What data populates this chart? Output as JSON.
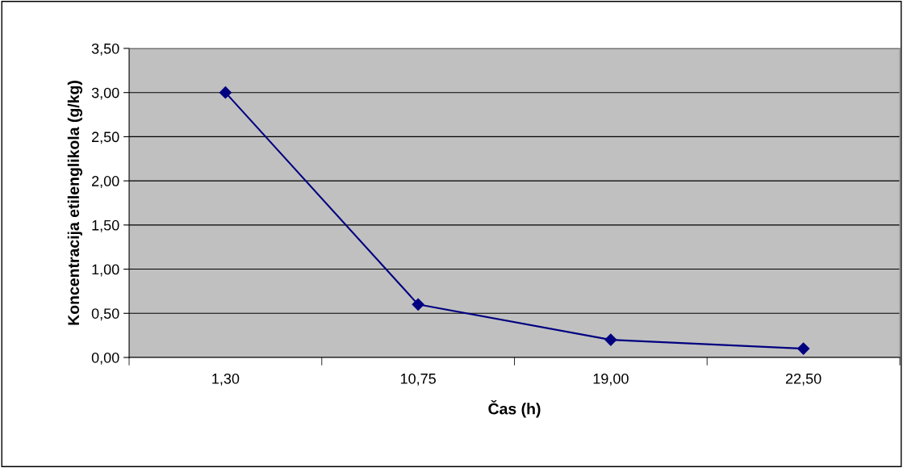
{
  "chart_data": {
    "type": "line",
    "xlabel": "Čas (h)",
    "ylabel": "Koncentracija etilenglikola (g/kg)",
    "categories": [
      "1,30",
      "10,75",
      "19,00",
      "22,50"
    ],
    "series": [
      {
        "color": "#000080",
        "values": [
          3.0,
          0.6,
          0.2,
          0.1
        ]
      }
    ],
    "ylim": [
      0,
      3.5
    ],
    "yticks": [
      {
        "value": 0,
        "label": "0,00"
      },
      {
        "value": 0.5,
        "label": "0,50"
      },
      {
        "value": 1,
        "label": "1,00"
      },
      {
        "value": 1.5,
        "label": "1,50"
      },
      {
        "value": 2,
        "label": "2,00"
      },
      {
        "value": 2.5,
        "label": "2,50"
      },
      {
        "value": 3,
        "label": "3,00"
      },
      {
        "value": 3.5,
        "label": "3,50"
      }
    ],
    "grid": "y",
    "marker": "diamond",
    "line_style": "solid",
    "legend": false
  }
}
